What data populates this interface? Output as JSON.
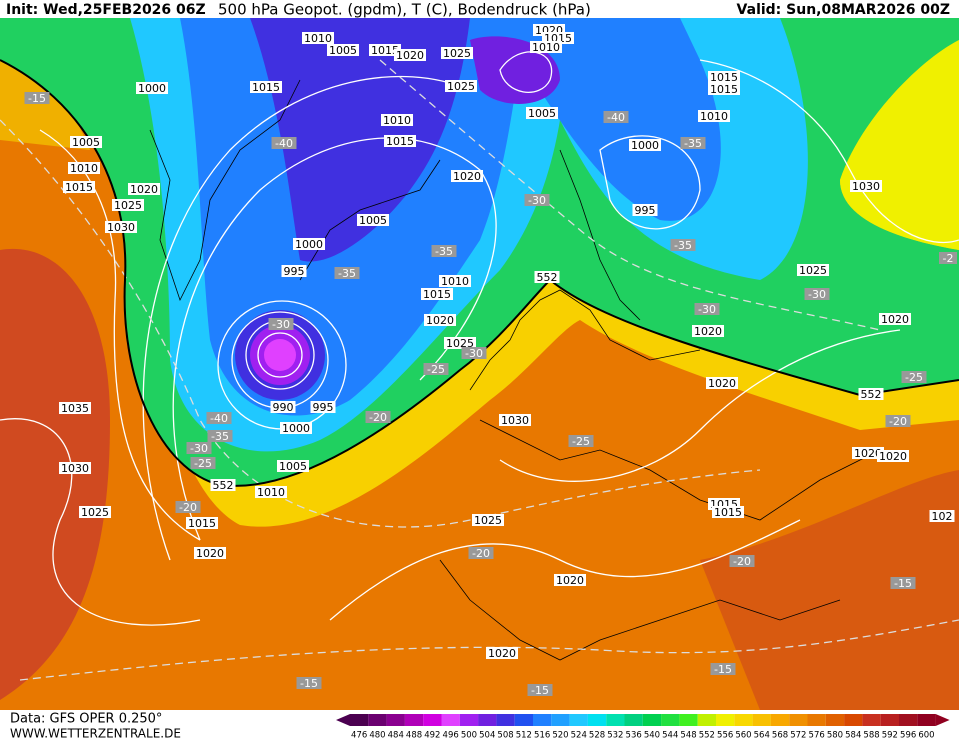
{
  "header": {
    "init": "Init: Wed,25FEB2026 06Z",
    "title": "500 hPa Geopot. (gpdm), T (C), Bodendruck (hPa)",
    "valid": "Valid: Sun,08MAR2026 00Z"
  },
  "footer": {
    "data": "Data: GFS OPER 0.250°",
    "site": "WWW.WETTERZENTRALE.DE"
  },
  "colorbar": {
    "ticks": [
      476,
      480,
      484,
      488,
      492,
      496,
      500,
      504,
      508,
      512,
      516,
      520,
      524,
      528,
      532,
      536,
      540,
      544,
      548,
      552,
      556,
      560,
      564,
      568,
      572,
      576,
      580,
      584,
      588,
      592,
      596,
      600
    ],
    "colors": [
      "#4b0050",
      "#6a0070",
      "#8a0090",
      "#b000b8",
      "#d000e0",
      "#e040ff",
      "#a020f0",
      "#7020e0",
      "#4030e0",
      "#2050f0",
      "#2080ff",
      "#20a0ff",
      "#20c8ff",
      "#00e0f0",
      "#00e0b0",
      "#00d080",
      "#00d050",
      "#20e040",
      "#40f020",
      "#c0f000",
      "#f0f000",
      "#f8d800",
      "#f8c000",
      "#f8a800",
      "#f09000",
      "#e87800",
      "#e06000",
      "#d84800",
      "#c83020",
      "#b82020",
      "#a01020",
      "#900020"
    ]
  },
  "isobar_labels": [
    1010,
    1005,
    1015,
    1020,
    1025,
    1020,
    1015,
    1010,
    1000,
    1015,
    1025,
    1015,
    1015,
    1005,
    1010,
    1010,
    1015,
    1000,
    1005,
    1010,
    1015,
    1020,
    1025,
    1030,
    1020,
    1030,
    995,
    1005,
    1000,
    995,
    1025,
    1010,
    1015,
    1020,
    1020,
    1020,
    1025,
    1020,
    990,
    995,
    1000,
    1035,
    1030,
    1030,
    1005,
    1020,
    1020,
    1010,
    1025,
    1015,
    1025,
    1015,
    1015,
    1020,
    1020,
    1020,
    102
  ],
  "isotherm_labels": [
    -15,
    -40,
    -40,
    -35,
    -30,
    -35,
    -35,
    -35,
    -30,
    -30,
    -25,
    -20,
    -30,
    -30,
    -25,
    -20,
    -40,
    -35,
    -30,
    -25,
    -20,
    -25,
    -20,
    -20,
    -15,
    -15,
    -15,
    -15,
    -2
  ],
  "contour_552_labels": [
    552,
    552,
    552
  ]
}
